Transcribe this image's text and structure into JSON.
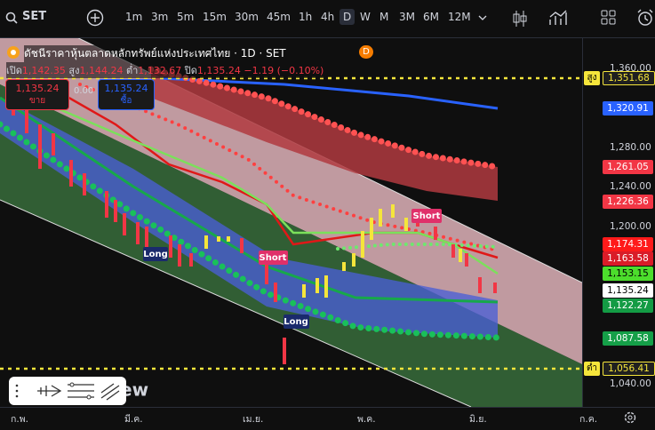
{
  "toolbar": {
    "symbol": "SET",
    "intervals": [
      "1m",
      "3m",
      "5m",
      "15m",
      "30m",
      "45m",
      "1h",
      "4h",
      "D",
      "W",
      "M",
      "3M",
      "6M",
      "12M"
    ]
  },
  "legend": {
    "title": "ดัชนีราคาหุ้นตลาดหลักทรัพย์แห่งประเทศไทย · 1D · SET",
    "badge": "D",
    "open_label": "เปิด",
    "open": "1,142.35",
    "high_label": "สูง",
    "high": "1,144.24",
    "low_label": "ต่ำ",
    "low": "1,132.67",
    "close_label": "ปิด",
    "close": "1,135.24",
    "change": "−1.19 (−0.10%)"
  },
  "trade": {
    "sell_price": "1,135.24",
    "sell_label": "ขาย",
    "spread": "0.00",
    "buy_price": "1,135.24",
    "buy_label": "ซื้อ"
  },
  "price_axis": {
    "labels": [
      "1,360.00",
      "1,280.00",
      "1,240.00",
      "1,200.00",
      "1,040.00"
    ],
    "tags": [
      {
        "caption": "สูง",
        "label": "1,351.68"
      },
      {
        "label": "1,320.91"
      },
      {
        "label": "1,261.05"
      },
      {
        "label": "1,226.36"
      },
      {
        "label": "1,174.31"
      },
      {
        "label": "1,163.58"
      },
      {
        "label": "1,153.15"
      },
      {
        "label": "1,135.24"
      },
      {
        "label": "1,122.27"
      },
      {
        "label": "1,087.58"
      },
      {
        "caption": "ต่ำ",
        "label": "1,056.41"
      }
    ]
  },
  "time_axis": [
    "ก.พ.",
    "มี.ค.",
    "เม.ย.",
    "พ.ค.",
    "มิ.ย.",
    "ก.ค."
  ],
  "annotations": [
    "Long",
    "Short",
    "Short",
    "Long"
  ],
  "watermark": "ew"
}
